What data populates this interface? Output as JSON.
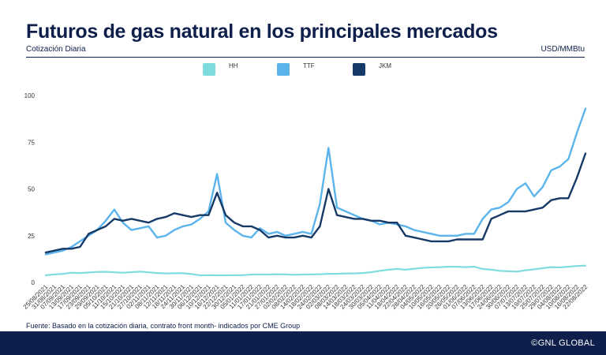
{
  "header": {
    "title": "Futuros de gas natural en los principales mercados",
    "subtitle": "Cotización Diaria",
    "units": "USD/MMBtu"
  },
  "footer": {
    "source": "Fuente: Basado en la cotización diaria, contrato front month- indicados por CME Group",
    "brand": "©GNL GLOBAL"
  },
  "colors": {
    "HH": "#7fdcde",
    "TTF": "#5bb4ec",
    "JKM": "#163a68"
  },
  "chart_data": {
    "type": "line",
    "ylim": [
      0,
      100
    ],
    "yticks": [
      0,
      25,
      50,
      75,
      100
    ],
    "grid": false,
    "legend": "top-center",
    "x": [
      "25/08/2021",
      "31/08/2021",
      "07/09/2021",
      "13/09/2021",
      "17/09/2021",
      "23/09/2021",
      "29/09/2021",
      "05/10/2021",
      "11/10/2021",
      "15/10/2021",
      "21/10/2021",
      "27/10/2021",
      "02/11/2021",
      "08/11/2021",
      "12/11/2021",
      "18/11/2021",
      "24/11/2021",
      "30/11/2021",
      "06/12/2021",
      "10/12/2021",
      "16/12/2021",
      "22/12/2021",
      "30/12/2021",
      "05/01/2022",
      "11/01/2022",
      "17/01/2022",
      "21/01/2022",
      "27/01/2022",
      "02/02/2022",
      "08/02/2022",
      "14/02/2022",
      "18/02/2022",
      "24/02/2022",
      "02/03/2022",
      "08/03/2022",
      "14/03/2022",
      "18/03/2022",
      "24/03/2022",
      "30/03/2022",
      "05/04/2022",
      "11/04/2022",
      "18/04/2022",
      "22/04/2022",
      "28/04/2022",
      "04/05/2022",
      "10/05/2022",
      "16/05/2022",
      "20/05/2022",
      "26/05/2022",
      "01/06/2022",
      "07/06/2022",
      "13/06/2022",
      "17/06/2022",
      "24/06/2022",
      "30/06/2022",
      "07/07/2022",
      "13/07/2022",
      "19/07/2022",
      "25/07/2022",
      "29/07/2022",
      "04/08/2022",
      "10/08/2022",
      "16/08/2022",
      "22/08/2022"
    ],
    "series": [
      {
        "name": "HH",
        "values": [
          3.8,
          4.3,
          4.6,
          5.2,
          5.0,
          5.3,
          5.6,
          5.7,
          5.4,
          5.2,
          5.5,
          5.8,
          5.4,
          5.0,
          4.8,
          4.9,
          4.9,
          4.5,
          3.8,
          3.9,
          3.8,
          3.8,
          3.9,
          3.9,
          4.2,
          4.3,
          4.2,
          4.4,
          4.3,
          4.1,
          4.2,
          4.3,
          4.4,
          4.6,
          4.6,
          4.8,
          4.8,
          5.0,
          5.5,
          6.2,
          6.8,
          7.2,
          6.8,
          7.3,
          7.8,
          8.0,
          8.2,
          8.4,
          8.4,
          8.2,
          8.4,
          7.2,
          6.8,
          6.2,
          6.0,
          5.8,
          6.5,
          7.0,
          7.6,
          8.2,
          8.0,
          8.4,
          8.8,
          9.0
        ]
      },
      {
        "name": "TTF",
        "values": [
          15,
          16,
          17,
          19,
          22,
          25,
          28,
          33,
          39,
          32,
          28,
          29,
          30,
          24,
          25,
          28,
          30,
          31,
          34,
          38,
          58,
          32,
          28,
          25,
          24,
          29,
          26,
          27,
          25,
          26,
          27,
          26,
          42,
          72,
          40,
          38,
          36,
          34,
          33,
          31,
          32,
          31,
          30,
          28,
          27,
          26,
          25,
          25,
          25,
          26,
          26,
          34,
          39,
          40,
          43,
          50,
          53,
          46,
          51,
          60,
          62,
          66,
          80,
          93
        ]
      },
      {
        "name": "JKM",
        "values": [
          16,
          17,
          18,
          18,
          19,
          26,
          28,
          30,
          34,
          33,
          34,
          33,
          32,
          34,
          35,
          37,
          36,
          35,
          36,
          36,
          48,
          36,
          32,
          30,
          30,
          28,
          24,
          25,
          24,
          24,
          25,
          24,
          30,
          50,
          36,
          35,
          34,
          34,
          33,
          33,
          32,
          32,
          25,
          24,
          23,
          22,
          22,
          22,
          23,
          23,
          23,
          23,
          34,
          36,
          38,
          38,
          38,
          39,
          40,
          44,
          45,
          45,
          56,
          69
        ]
      }
    ]
  }
}
